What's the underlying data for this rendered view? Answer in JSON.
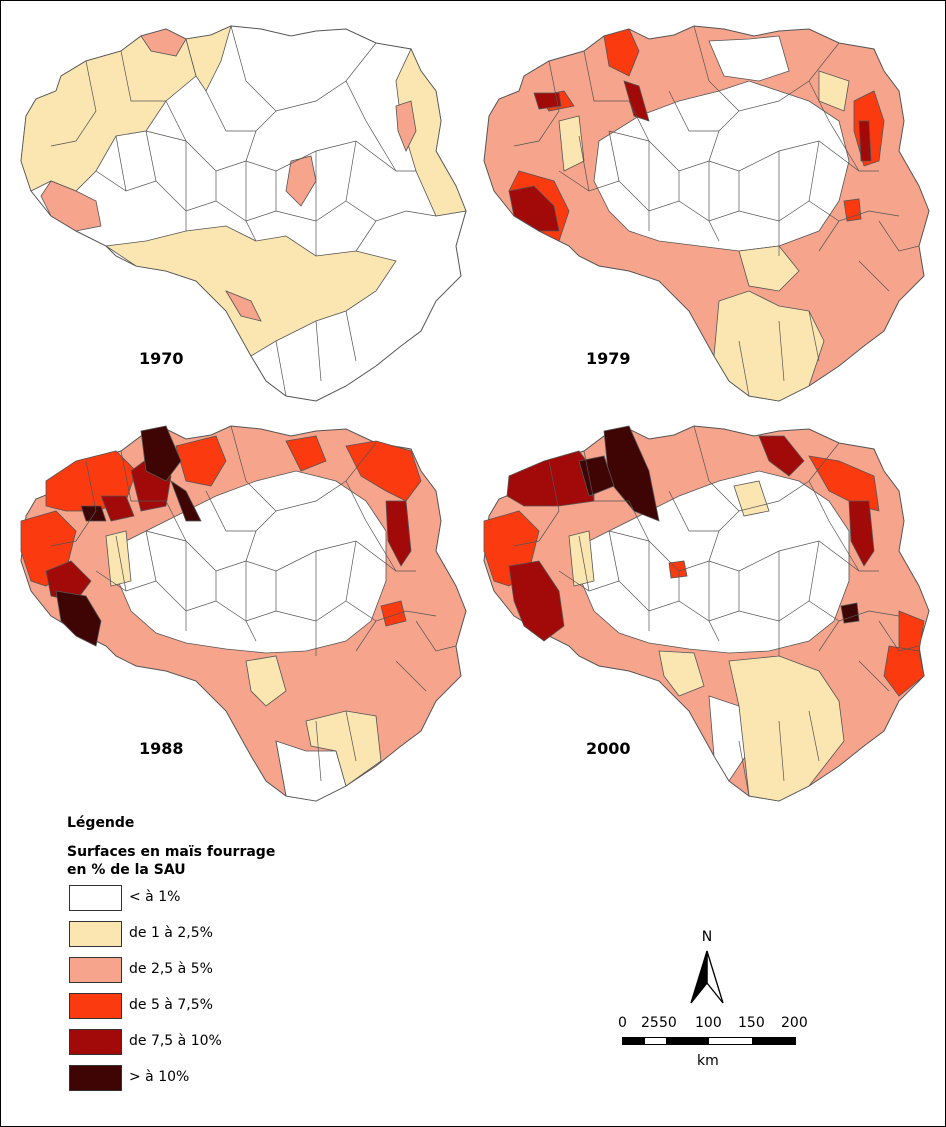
{
  "classes": [
    {
      "label": "< à 1%",
      "color": "#ffffff"
    },
    {
      "label": "de 1 à 2,5%",
      "color": "#fbe6b1"
    },
    {
      "label": "de 2,5 à 5%",
      "color": "#f7a48c"
    },
    {
      "label": "de 5 à 7,5%",
      "color": "#fc3a10"
    },
    {
      "label": "de 7,5 à 10%",
      "color": "#a10a08"
    },
    {
      "label": "> à 10%",
      "color": "#3f0505"
    }
  ],
  "maps": [
    {
      "year": "1970"
    },
    {
      "year": "1979"
    },
    {
      "year": "1988"
    },
    {
      "year": "2000"
    }
  ],
  "legend": {
    "title": "Légende",
    "subtitle_line1": "Surfaces en maïs fourrage",
    "subtitle_line2": "en % de la SAU"
  },
  "north": {
    "label": "N"
  },
  "scale": {
    "ticks": [
      "0",
      "25",
      "50",
      "100",
      "150",
      "200"
    ],
    "unit": "km"
  }
}
